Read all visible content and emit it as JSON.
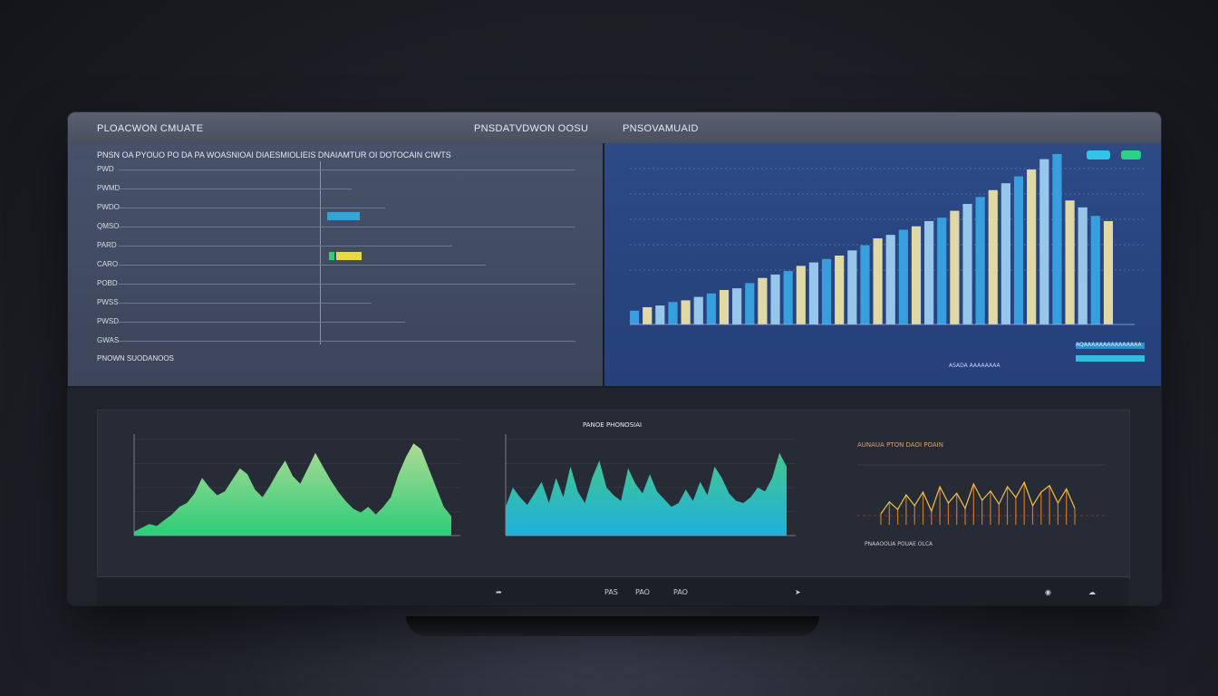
{
  "titlebar": {
    "left": "PLOACWON CMUATE",
    "center": "PNSDATVDWON OOSU",
    "right": "PNSOVAMUAID"
  },
  "left_panel": {
    "header": "PNSN OA PYOUO PO DA PA WOASNIOAI DIAESMIOLIEIS DNAIAMTUR OI DOTOCAIN CIWTS",
    "row_labels": [
      "PWD",
      "PWMD",
      "PWDO",
      "QMSO",
      "PARD",
      "CARO",
      "POBD",
      "PWSS",
      "PWSD",
      "GWAS"
    ],
    "footer": "PNOWN SUODANOOS"
  },
  "right_panel": {
    "legend_a": "AQAAAAAAAAAAAAAAA",
    "legend_b": "ASADA AAAAAAAA"
  },
  "lower": {
    "center_title": "PANOE PHONOSIAI",
    "right_title": "AUNAUA PTON DAOI POAIN",
    "right_caption": "PNAAOOUA POUAE OLCA"
  },
  "toolbar": {
    "items": [
      "PAS",
      "PAO",
      "PAO"
    ]
  },
  "colors": {
    "bar_blue": "#3aa7e6",
    "bar_cream": "#f0e6a8",
    "bar_light": "#9fd3f3",
    "area_green": "#2bd67b",
    "area_blue": "#1fb6e6",
    "spark_orange": "#f08a2a"
  },
  "chart_data": [
    {
      "type": "bar",
      "series": [
        {
          "name": "",
          "values": [
            8,
            10,
            11,
            13,
            14,
            16,
            18,
            20,
            21,
            24,
            27,
            29,
            31,
            34,
            36,
            38,
            40,
            43,
            46,
            50,
            52,
            55,
            57,
            60,
            62,
            66,
            70,
            74,
            78,
            82,
            86,
            90,
            96,
            99,
            72,
            68,
            63,
            60
          ]
        }
      ],
      "ylim": [
        0,
        100
      ]
    },
    {
      "type": "area",
      "series": [
        {
          "name": "",
          "values": [
            4,
            8,
            12,
            10,
            16,
            22,
            30,
            34,
            44,
            60,
            50,
            42,
            46,
            58,
            70,
            64,
            48,
            40,
            52,
            66,
            78,
            62,
            54,
            70,
            86,
            72,
            58,
            46,
            36,
            28,
            24,
            30,
            22,
            30,
            40,
            64,
            82,
            96,
            90,
            70,
            50,
            30,
            20
          ]
        }
      ],
      "ylim": [
        0,
        100
      ]
    },
    {
      "type": "area",
      "series": [
        {
          "name": "",
          "values": [
            30,
            50,
            40,
            32,
            44,
            56,
            34,
            60,
            40,
            72,
            46,
            34,
            60,
            78,
            50,
            42,
            36,
            70,
            54,
            44,
            64,
            46,
            38,
            30,
            34,
            48,
            36,
            56,
            42,
            72,
            60,
            44,
            36,
            34,
            40,
            50,
            46,
            60,
            86,
            72
          ]
        }
      ],
      "ylim": [
        0,
        100
      ]
    },
    {
      "type": "line",
      "series": [
        {
          "name": "",
          "values": [
            20,
            42,
            28,
            55,
            35,
            60,
            25,
            70,
            40,
            58,
            30,
            75,
            45,
            62,
            38,
            70,
            50,
            78,
            35,
            60,
            72,
            40,
            66,
            30
          ]
        }
      ],
      "ylim": [
        0,
        100
      ]
    }
  ]
}
